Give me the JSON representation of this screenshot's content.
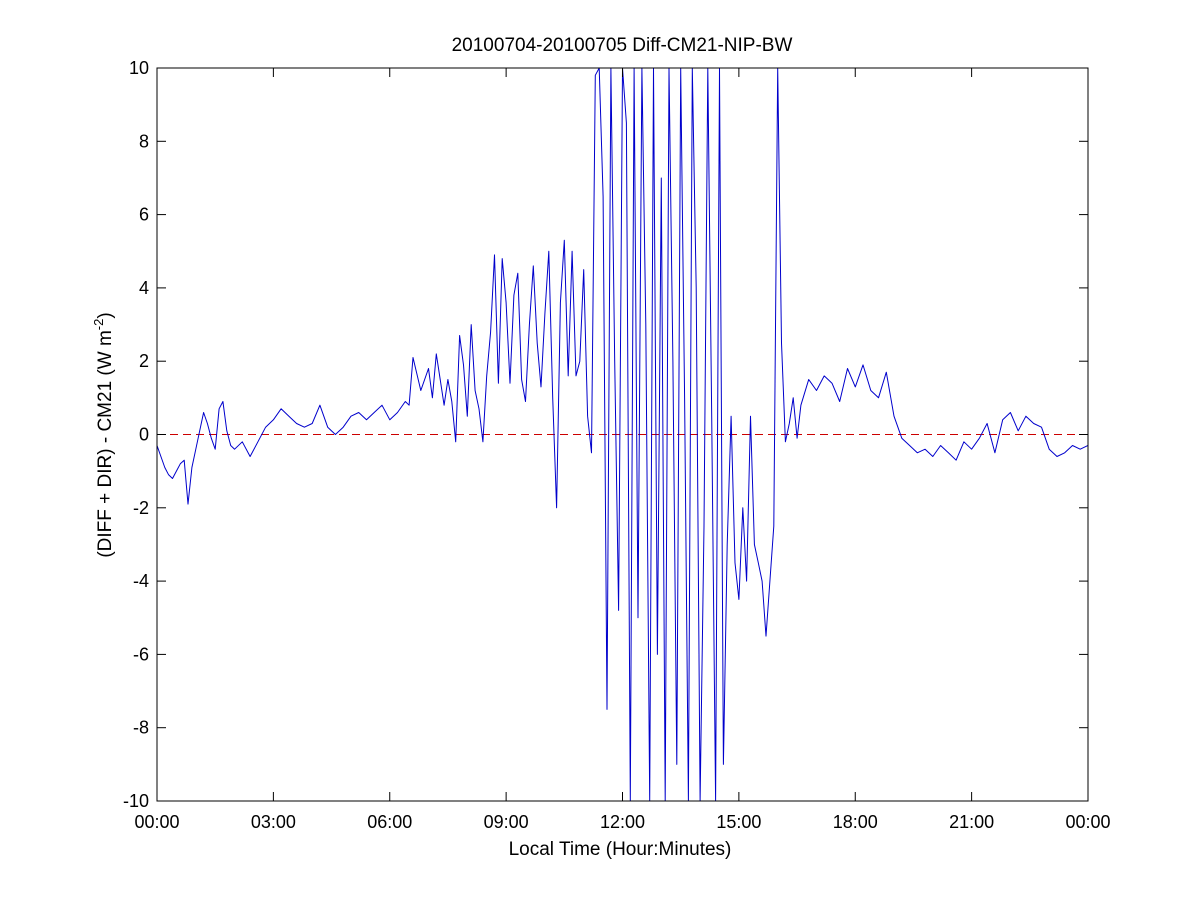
{
  "chart_data": {
    "type": "line",
    "title": "20100704-20100705 Diff-CM21-NIP-BW",
    "xlabel": "Local Time (Hour:Minutes)",
    "ylabel_main": "(DIFF + DIR) - CM21 (W m",
    "ylabel_sup": "-2",
    "ylabel_close": ")",
    "xlim": [
      0,
      24
    ],
    "ylim": [
      -10,
      10
    ],
    "x_ticks": [
      0,
      3,
      6,
      9,
      12,
      15,
      18,
      21,
      24
    ],
    "x_tick_labels": [
      "00:00",
      "03:00",
      "06:00",
      "09:00",
      "12:00",
      "15:00",
      "18:00",
      "21:00",
      "00:00"
    ],
    "y_ticks": [
      -10,
      -8,
      -6,
      -4,
      -2,
      0,
      2,
      4,
      6,
      8,
      10
    ],
    "y_tick_labels": [
      "-10",
      "-8",
      "-6",
      "-4",
      "-2",
      "0",
      "2",
      "4",
      "6",
      "8",
      "10"
    ],
    "reference_line": {
      "y": 0,
      "style": "dashed",
      "color": "#cc0000"
    },
    "grid": false,
    "series": [
      {
        "color": "#0000cc",
        "x": [
          0.0,
          0.1,
          0.2,
          0.3,
          0.4,
          0.5,
          0.6,
          0.7,
          0.8,
          0.9,
          1.0,
          1.1,
          1.2,
          1.3,
          1.4,
          1.5,
          1.6,
          1.7,
          1.8,
          1.9,
          2.0,
          2.2,
          2.4,
          2.6,
          2.8,
          3.0,
          3.2,
          3.4,
          3.6,
          3.8,
          4.0,
          4.2,
          4.4,
          4.6,
          4.8,
          5.0,
          5.2,
          5.4,
          5.6,
          5.8,
          6.0,
          6.2,
          6.4,
          6.5,
          6.6,
          6.8,
          7.0,
          7.1,
          7.2,
          7.3,
          7.4,
          7.5,
          7.6,
          7.7,
          7.8,
          7.9,
          8.0,
          8.1,
          8.2,
          8.3,
          8.4,
          8.5,
          8.6,
          8.7,
          8.8,
          8.9,
          9.0,
          9.1,
          9.2,
          9.3,
          9.4,
          9.5,
          9.6,
          9.7,
          9.8,
          9.9,
          10.0,
          10.1,
          10.2,
          10.3,
          10.4,
          10.5,
          10.6,
          10.7,
          10.8,
          10.9,
          11.0,
          11.1,
          11.2,
          11.3,
          11.4,
          11.5,
          11.6,
          11.7,
          11.8,
          11.9,
          12.0,
          12.1,
          12.2,
          12.3,
          12.4,
          12.5,
          12.6,
          12.7,
          12.8,
          12.9,
          13.0,
          13.1,
          13.2,
          13.3,
          13.4,
          13.5,
          13.6,
          13.7,
          13.8,
          13.9,
          14.0,
          14.1,
          14.2,
          14.3,
          14.4,
          14.5,
          14.6,
          14.7,
          14.8,
          14.9,
          15.0,
          15.1,
          15.2,
          15.3,
          15.4,
          15.5,
          15.6,
          15.7,
          15.8,
          15.9,
          16.0,
          16.1,
          16.2,
          16.3,
          16.4,
          16.5,
          16.6,
          16.8,
          17.0,
          17.2,
          17.4,
          17.6,
          17.8,
          18.0,
          18.2,
          18.4,
          18.6,
          18.8,
          19.0,
          19.2,
          19.4,
          19.6,
          19.8,
          20.0,
          20.2,
          20.4,
          20.6,
          20.8,
          21.0,
          21.2,
          21.4,
          21.6,
          21.8,
          22.0,
          22.2,
          22.4,
          22.6,
          22.8,
          23.0,
          23.2,
          23.4,
          23.6,
          23.8,
          24.0
        ],
        "y": [
          -0.3,
          -0.6,
          -0.9,
          -1.1,
          -1.2,
          -1.0,
          -0.8,
          -0.7,
          -1.9,
          -0.9,
          -0.4,
          0.1,
          0.6,
          0.3,
          -0.1,
          -0.4,
          0.7,
          0.9,
          0.1,
          -0.3,
          -0.4,
          -0.2,
          -0.6,
          -0.2,
          0.2,
          0.4,
          0.7,
          0.5,
          0.3,
          0.2,
          0.3,
          0.8,
          0.2,
          0.0,
          0.2,
          0.5,
          0.6,
          0.4,
          0.6,
          0.8,
          0.4,
          0.6,
          0.9,
          0.8,
          2.1,
          1.2,
          1.8,
          1.0,
          2.2,
          1.5,
          0.8,
          1.5,
          0.9,
          -0.2,
          2.7,
          1.9,
          0.5,
          3.0,
          1.2,
          0.7,
          -0.2,
          1.6,
          2.8,
          4.9,
          1.4,
          4.8,
          3.6,
          1.4,
          3.8,
          4.4,
          1.5,
          0.9,
          3.0,
          4.6,
          2.5,
          1.3,
          3.3,
          5.0,
          1.0,
          -2.0,
          3.6,
          5.3,
          1.6,
          5.0,
          1.6,
          2.0,
          4.5,
          0.5,
          -0.5,
          9.8,
          10.0,
          6.5,
          -7.5,
          10.0,
          2.0,
          -4.8,
          10.0,
          8.5,
          -10.0,
          10.0,
          -5.0,
          10.0,
          3.0,
          -10.0,
          10.0,
          -6.0,
          7.0,
          -10.0,
          10.0,
          2.0,
          -9.0,
          10.0,
          1.0,
          -10.0,
          10.0,
          4.0,
          -10.0,
          -2.5,
          10.0,
          0.5,
          -10.0,
          10.0,
          -9.0,
          -3.0,
          0.5,
          -3.5,
          -4.5,
          -2.0,
          -4.0,
          0.5,
          -3.0,
          -3.5,
          -4.0,
          -5.5,
          -4.0,
          -2.5,
          10.0,
          2.5,
          -0.2,
          0.3,
          1.0,
          -0.1,
          0.8,
          1.5,
          1.2,
          1.6,
          1.4,
          0.9,
          1.8,
          1.3,
          1.9,
          1.2,
          1.0,
          1.7,
          0.5,
          -0.1,
          -0.3,
          -0.5,
          -0.4,
          -0.6,
          -0.3,
          -0.5,
          -0.7,
          -0.2,
          -0.4,
          -0.1,
          0.3,
          -0.5,
          0.4,
          0.6,
          0.1,
          0.5,
          0.3,
          0.2,
          -0.4,
          -0.6,
          -0.5,
          -0.3,
          -0.4,
          -0.3
        ]
      }
    ]
  }
}
